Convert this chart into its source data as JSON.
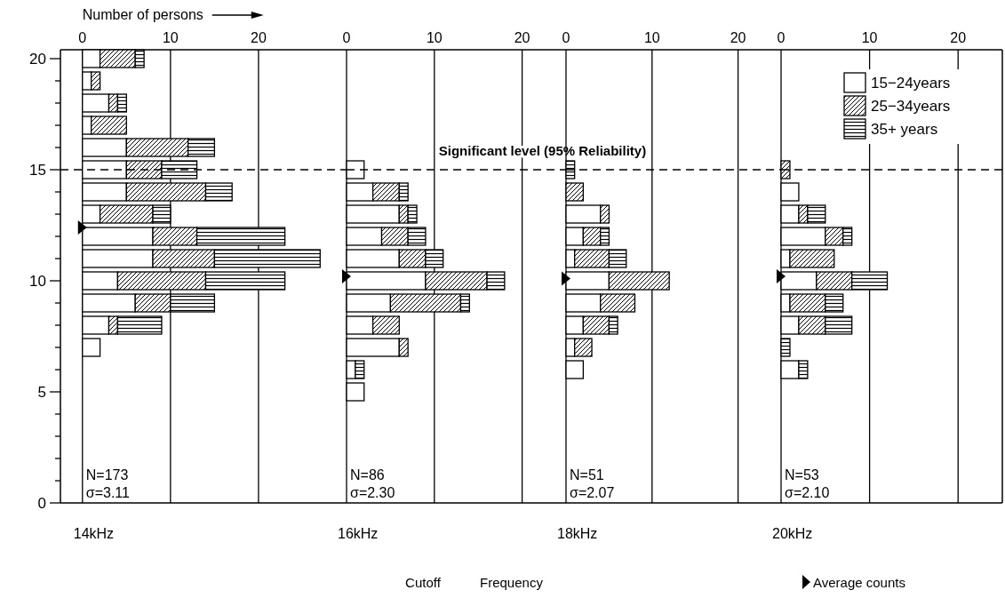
{
  "chart_data": [
    {
      "type": "bar",
      "orientation": "horizontal",
      "stacked": true,
      "xlabel": "Number of persons",
      "title": "14kHz",
      "x": [
        20,
        19,
        18,
        17,
        16,
        15,
        14,
        13,
        12,
        11,
        10,
        9,
        8,
        7
      ],
      "series": [
        {
          "color": "#ffffff",
          "values": [
            2,
            1,
            3,
            1,
            5,
            5,
            5,
            2,
            8,
            8,
            4,
            6,
            3,
            2
          ]
        },
        {
          "color": "#000000",
          "values": [
            4,
            1,
            1,
            4,
            7,
            4,
            9,
            6,
            5,
            7,
            10,
            4,
            1,
            0
          ]
        },
        {
          "color": "#000000",
          "values": [
            1,
            0,
            1,
            0,
            3,
            4,
            3,
            2,
            10,
            12,
            9,
            5,
            5,
            0
          ]
        },
        {
          "type": "scatter",
          "marker": "triangle",
          "color": "#000000",
          "x": [
            12.4
          ],
          "values": [
            0
          ]
        }
      ],
      "xlim": [
        -2.5,
        30
      ],
      "xticks": [
        0,
        10,
        20
      ],
      "ylim": [
        0,
        20.4
      ],
      "yticks": [
        0,
        {
          "value": 1,
          "label": null
        },
        {
          "value": 2,
          "label": null
        },
        {
          "value": 3,
          "label": null
        },
        {
          "value": 4,
          "label": null
        },
        5,
        {
          "value": 6,
          "label": null
        },
        {
          "value": 7,
          "label": null
        },
        {
          "value": 8,
          "label": null
        },
        {
          "value": 9,
          "label": null
        },
        10,
        {
          "value": 11,
          "label": null
        },
        {
          "value": 12,
          "label": null
        },
        {
          "value": 13,
          "label": null
        },
        {
          "value": 14,
          "label": null
        },
        15,
        {
          "value": 16,
          "label": null
        },
        {
          "value": 17,
          "label": null
        },
        {
          "value": 18,
          "label": null
        },
        {
          "value": 19,
          "label": null
        },
        20
      ],
      "grid": "x",
      "annotations": [
        "N=173",
        "σ=3.11"
      ],
      "ref_lines": [
        {
          "axis": "y",
          "value": 15,
          "line_style": "dashed",
          "color": "#000000"
        }
      ]
    },
    {
      "type": "bar",
      "orientation": "horizontal",
      "stacked": true,
      "xlabel": "Cutoff Frequency",
      "title": "16kHz",
      "x": [
        15,
        14,
        13,
        12,
        11,
        10,
        9,
        8,
        7,
        6,
        5
      ],
      "series": [
        {
          "color": "#ffffff",
          "values": [
            2,
            3,
            6,
            4,
            6,
            9,
            5,
            3,
            6,
            1,
            2
          ]
        },
        {
          "color": "#000000",
          "values": [
            0,
            3,
            1,
            3,
            3,
            7,
            8,
            3,
            1,
            0,
            0
          ]
        },
        {
          "color": "#000000",
          "values": [
            0,
            1,
            1,
            2,
            2,
            2,
            1,
            0,
            0,
            1,
            0
          ]
        },
        {
          "type": "scatter",
          "marker": "triangle",
          "color": "#000000",
          "x": [
            10.2
          ],
          "values": [
            0
          ]
        }
      ],
      "xlim": [
        0,
        25
      ],
      "xticks": [
        0,
        10,
        20
      ],
      "ylim": [
        0,
        20.4
      ],
      "tick_labels": "x",
      "grid": "x",
      "annotations": [
        "N=86",
        "σ=2.30"
      ],
      "ref_lines": [
        {
          "axis": "y",
          "value": 15,
          "line_style": "dashed",
          "color": "#000000",
          "label": "Significant level (95% Reliability)"
        }
      ]
    },
    {
      "type": "bar",
      "orientation": "horizontal",
      "stacked": true,
      "title": "18kHz",
      "x": [
        15,
        14,
        13,
        12,
        11,
        10,
        9,
        8,
        7,
        6
      ],
      "series": [
        {
          "color": "#ffffff",
          "values": [
            0,
            0,
            4,
            2,
            1,
            5,
            4,
            2,
            1,
            2
          ]
        },
        {
          "color": "#000000",
          "values": [
            0,
            2,
            1,
            2,
            4,
            7,
            4,
            3,
            2,
            0
          ]
        },
        {
          "color": "#000000",
          "values": [
            1,
            0,
            0,
            1,
            2,
            0,
            0,
            1,
            0,
            0
          ]
        },
        {
          "type": "scatter",
          "marker": "triangle",
          "color": "#000000",
          "x": [
            10.1
          ],
          "values": [
            0
          ]
        }
      ],
      "xlim": [
        0,
        25
      ],
      "xticks": [
        0,
        10,
        20
      ],
      "ylim": [
        0,
        20.4
      ],
      "tick_labels": "x",
      "grid": "x",
      "annotations": [
        "N=51",
        "σ=2.07"
      ],
      "ref_lines": [
        {
          "axis": "y",
          "value": 15,
          "line_style": "dashed",
          "color": "#000000"
        }
      ]
    },
    {
      "type": "bar",
      "orientation": "horizontal",
      "stacked": true,
      "title": "20kHz",
      "x": [
        15,
        14,
        13,
        12,
        11,
        10,
        9,
        8,
        7,
        6
      ],
      "series": [
        {
          "name": "15−24years",
          "color": "#ffffff",
          "values": [
            0,
            2,
            2,
            5,
            1,
            4,
            1,
            2,
            0,
            2
          ]
        },
        {
          "name": "25−34years",
          "color": "#000000",
          "values": [
            1,
            0,
            1,
            2,
            5,
            4,
            4,
            3,
            0,
            0
          ]
        },
        {
          "name": "35+ years",
          "color": "#000000",
          "values": [
            0,
            0,
            2,
            1,
            0,
            4,
            2,
            3,
            1,
            1
          ]
        },
        {
          "type": "scatter",
          "marker": "triangle",
          "color": "#000000",
          "x": [
            10.2
          ],
          "values": [
            0
          ]
        }
      ],
      "xlim": [
        0,
        25
      ],
      "xticks": [
        0,
        10,
        20
      ],
      "ylim": [
        0,
        20.4
      ],
      "tick_labels": "x",
      "grid": "x",
      "legend": "top right",
      "annotations": [
        "N=53",
        "σ=2.10"
      ],
      "ref_lines": [
        {
          "axis": "y",
          "value": 15,
          "line_style": "dashed",
          "color": "#000000"
        }
      ]
    },
    {
      "type": "other",
      "annotations": [
        "Average counts"
      ]
    }
  ]
}
